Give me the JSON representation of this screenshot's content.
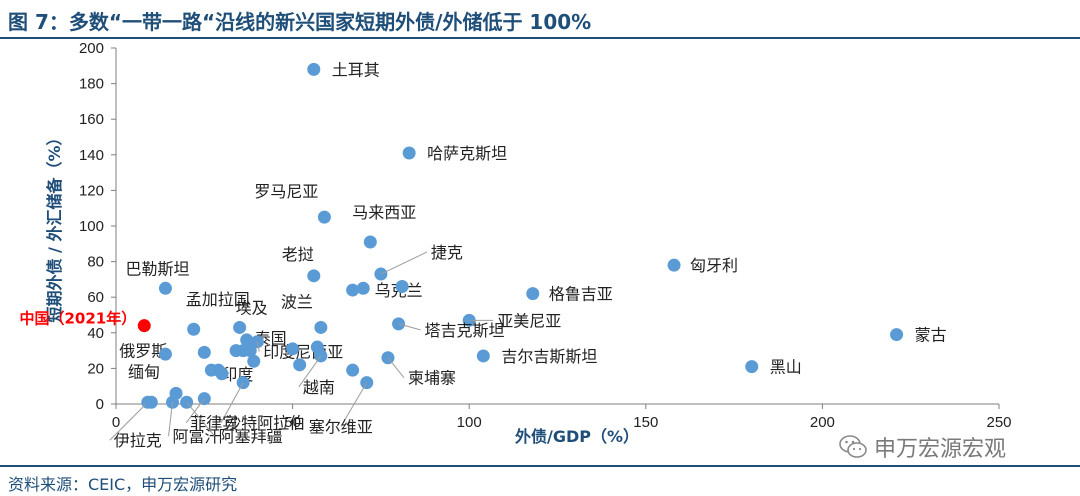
{
  "title": "图 7：多数“一带一路“沿线的新兴国家短期外债/外储低于 100%",
  "source": "资料来源：CEIC，申万宏源研究",
  "watermark": "申万宏源宏观",
  "colors": {
    "point": "#5b9bd5",
    "highlight": "#ff0000",
    "title": "#1f4e79",
    "leader": "#9c9c9c"
  },
  "chart_data": {
    "type": "scatter",
    "xlabel": "外债/GDP（%）",
    "ylabel": "短期外债 / 外汇储备（%）",
    "xlim": [
      0,
      250
    ],
    "ylim": [
      0,
      200
    ],
    "x_ticks": [
      "0",
      "50",
      "100",
      "150",
      "200",
      "250"
    ],
    "y_ticks": [
      "0",
      "20",
      "40",
      "60",
      "80",
      "100",
      "120",
      "140",
      "160",
      "180",
      "200"
    ],
    "grid": false,
    "points": [
      {
        "label": "土耳其",
        "x": 56,
        "y": 188
      },
      {
        "label": "哈萨克斯坦",
        "x": 83,
        "y": 141
      },
      {
        "label": "罗马尼亚",
        "x": 59,
        "y": 105
      },
      {
        "label": "马来西亚",
        "x": 72,
        "y": 91
      },
      {
        "label": "捷克",
        "x": 75,
        "y": 73
      },
      {
        "label": "老挝",
        "x": 56,
        "y": 72
      },
      {
        "label": "匈牙利",
        "x": 158,
        "y": 78
      },
      {
        "label": "巴勒斯坦",
        "x": 14,
        "y": 65
      },
      {
        "label": "格鲁吉亚",
        "x": 118,
        "y": 62
      },
      {
        "label": "孟加拉国",
        "x": 22,
        "y": 42
      },
      {
        "label": "埃及",
        "x": 35,
        "y": 43
      },
      {
        "label": "波兰",
        "x": 58,
        "y": 43
      },
      {
        "label": "乌克兰",
        "x": 67,
        "y": 64
      },
      {
        "label": "亚美尼亚",
        "x": 100,
        "y": 47
      },
      {
        "label": "蒙古",
        "x": 221,
        "y": 39
      },
      {
        "label": "塔吉克斯坦",
        "x": 80,
        "y": 45
      },
      {
        "label": "泰国",
        "x": 37,
        "y": 36
      },
      {
        "label": "印度尼西亚",
        "x": 40,
        "y": 35
      },
      {
        "label": "俄罗斯",
        "x": 25,
        "y": 29
      },
      {
        "label": "吉尔吉斯斯坦",
        "x": 104,
        "y": 27
      },
      {
        "label": "印度",
        "x": 27,
        "y": 19
      },
      {
        "label": "越南",
        "x": 58,
        "y": 27
      },
      {
        "label": "柬埔寨",
        "x": 77,
        "y": 26
      },
      {
        "label": "黑山",
        "x": 180,
        "y": 21
      },
      {
        "label": "缅甸",
        "x": 17,
        "y": 6
      },
      {
        "label": "沙特阿拉伯",
        "x": 36,
        "y": 12
      },
      {
        "label": "菲律宾",
        "x": 25,
        "y": 3
      },
      {
        "label": "塞尔维亚",
        "x": 71,
        "y": 12
      },
      {
        "label": "伊拉克",
        "x": 9,
        "y": 1
      },
      {
        "label": "阿富汗",
        "x": 16,
        "y": 1
      },
      {
        "label": "阿塞拜疆",
        "x": 20,
        "y": 1
      },
      {
        "label": "",
        "x": 10,
        "y": 1
      },
      {
        "label": "",
        "x": 14,
        "y": 28
      },
      {
        "label": "",
        "x": 39,
        "y": 24
      },
      {
        "label": "",
        "x": 38,
        "y": 30
      },
      {
        "label": "",
        "x": 34,
        "y": 30
      },
      {
        "label": "",
        "x": 36,
        "y": 30
      },
      {
        "label": "",
        "x": 30,
        "y": 17
      },
      {
        "label": "",
        "x": 29,
        "y": 19
      },
      {
        "label": "",
        "x": 50,
        "y": 31
      },
      {
        "label": "",
        "x": 52,
        "y": 22
      },
      {
        "label": "",
        "x": 57,
        "y": 32
      },
      {
        "label": "",
        "x": 67,
        "y": 19
      },
      {
        "label": "",
        "x": 70,
        "y": 65
      },
      {
        "label": "",
        "x": 81,
        "y": 66
      }
    ],
    "highlight": {
      "label": "中国（2021年）",
      "x": 8,
      "y": 44
    }
  }
}
